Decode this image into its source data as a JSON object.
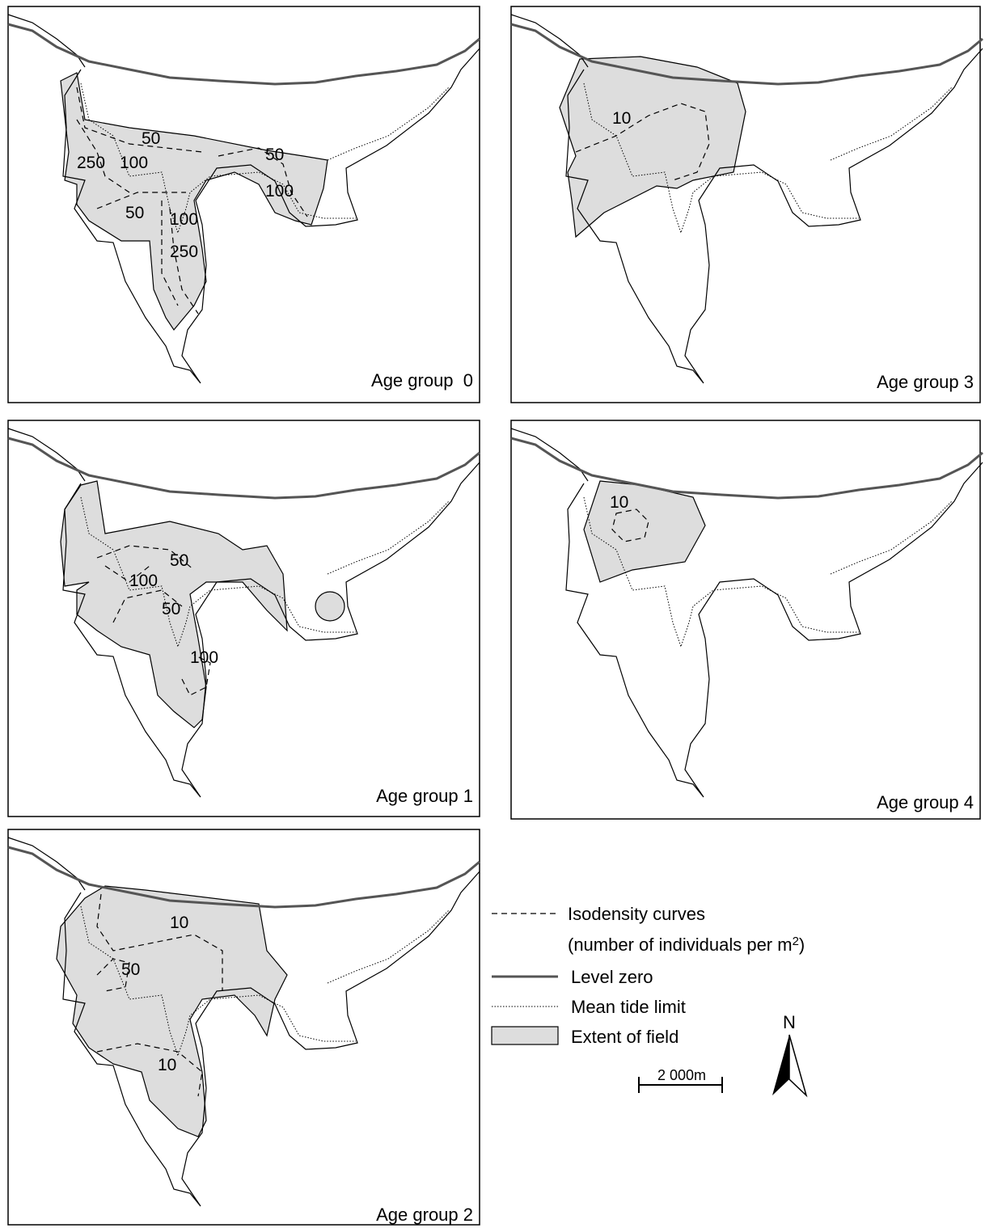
{
  "panels": [
    {
      "title": "Age group  0",
      "contours": [
        50,
        100,
        250,
        50,
        100,
        250,
        50,
        100
      ]
    },
    {
      "title": "Age group 3",
      "contours": [
        10
      ]
    },
    {
      "title": "Age group 1",
      "contours": [
        50,
        100,
        50,
        100
      ]
    },
    {
      "title": "Age group 4",
      "contours": [
        10
      ]
    },
    {
      "title": "Age group 2",
      "contours": [
        10,
        50,
        10
      ]
    }
  ],
  "legend": {
    "isodensity": "Isodensity curves",
    "isodensity_note": "(number of individuals per m",
    "superscript": "2",
    "note_close": ")",
    "level_zero": "Level zero",
    "mean_tide": "Mean tide limit",
    "extent": "Extent of field"
  },
  "scale": "2 000m",
  "north": "N"
}
